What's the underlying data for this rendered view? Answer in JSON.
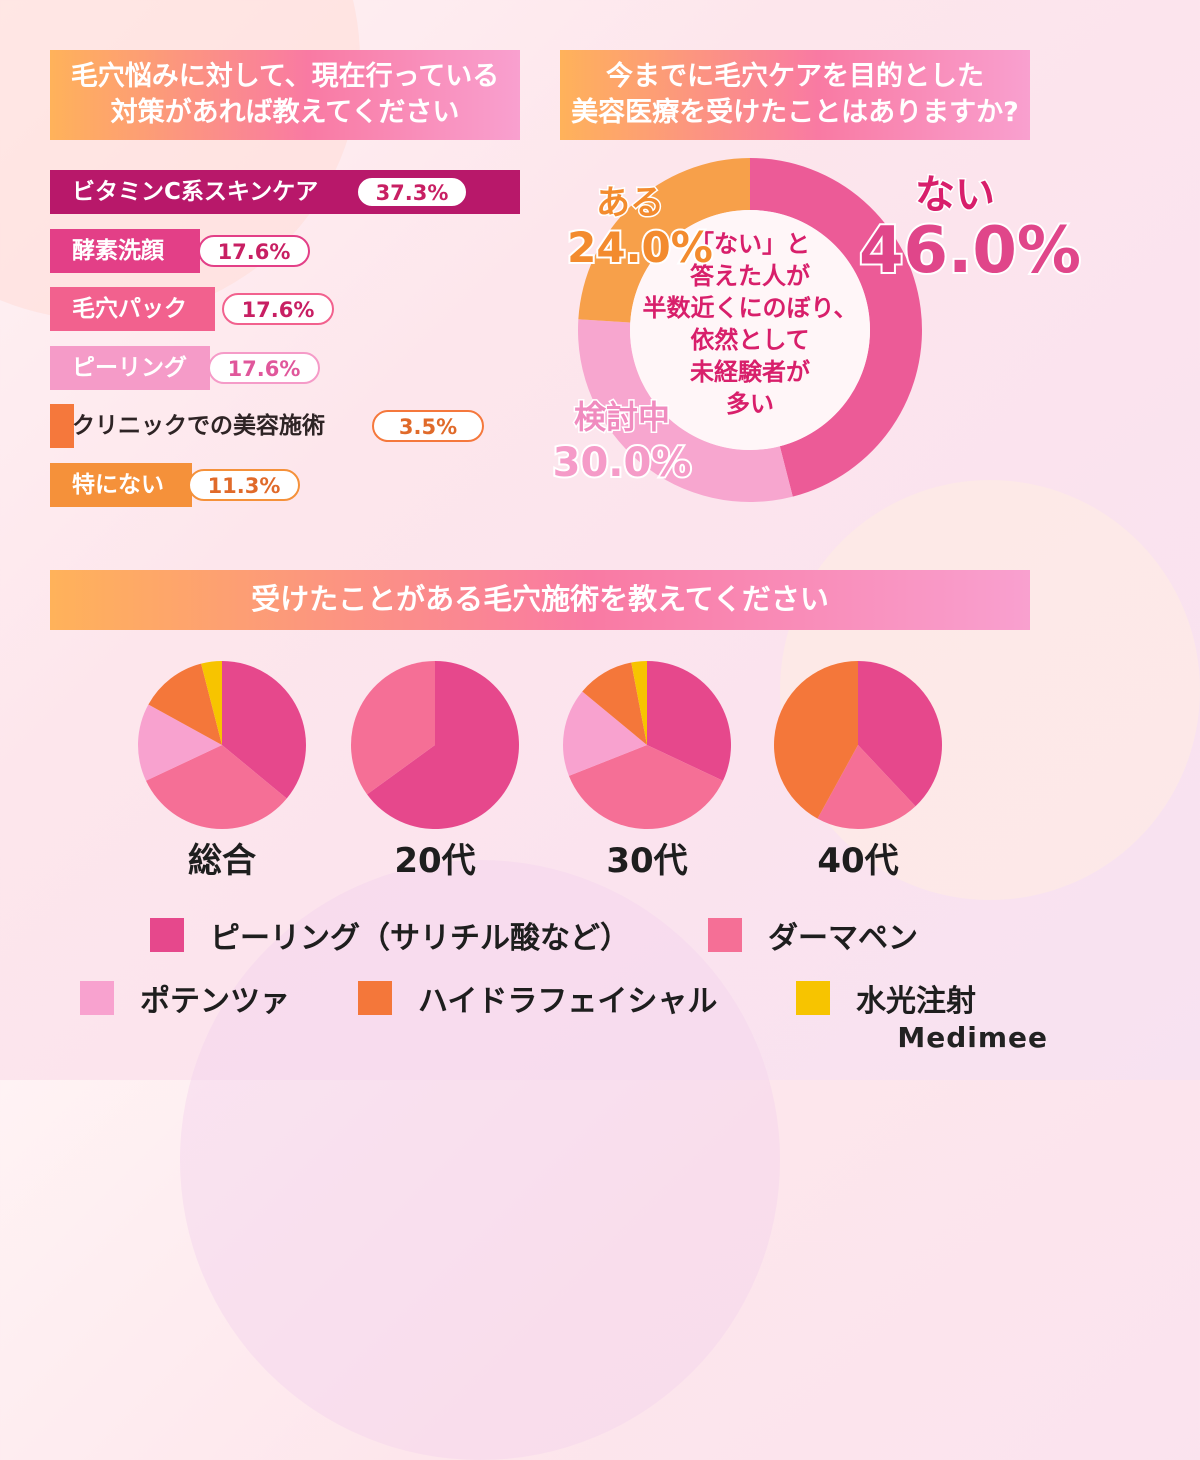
{
  "q1": {
    "title": "毛穴悩みに対して、現在行っている\n対策があれば教えてください"
  },
  "q2": {
    "title": "今までに毛穴ケアを目的とした\n美容医療を受けたことはありますか?",
    "center_text": [
      "「ない」と",
      "答えた人が",
      "半数近くにのぼり、",
      "依然として",
      "未経験者が",
      "多い"
    ]
  },
  "q3": {
    "title": "受けたことがある毛穴施術を教えてください"
  },
  "brand": "Medimee",
  "chart_data": [
    {
      "type": "bar",
      "orientation": "horizontal",
      "categories": [
        "ビタミンC系スキンケア",
        "酵素洗顔",
        "毛穴パック",
        "ピーリング",
        "クリニックでの美容施術",
        "特にない"
      ],
      "values": [
        37.3,
        17.6,
        17.6,
        17.6,
        3.5,
        11.3
      ],
      "value_labels": [
        "37.3%",
        "17.6%",
        "17.6%",
        "17.6%",
        "3.5%",
        "11.3%"
      ],
      "colors": [
        "#b8186a",
        "#e33f87",
        "#f2618e",
        "#f59bc8",
        "#f5783c",
        "#f5913a"
      ]
    },
    {
      "type": "pie",
      "style": "donut",
      "categories": [
        "ない",
        "検討中",
        "ある"
      ],
      "values": [
        46.0,
        30.0,
        24.0
      ],
      "value_labels": [
        "46.0%",
        "30.0%",
        "24.0%"
      ],
      "colors": [
        "#ec5b97",
        "#f7a6cf",
        "#f7a04a"
      ]
    },
    {
      "type": "pie",
      "legend": [
        "ピーリング（サリチル酸など）",
        "ダーマペン",
        "ポテンツァ",
        "ハイドラフェイシャル",
        "水光注射"
      ],
      "legend_colors": [
        "#e6488c",
        "#f56f96",
        "#f8a2cf",
        "#f4773a",
        "#f7c400"
      ],
      "groups": [
        {
          "label": "総合",
          "values": [
            36,
            32,
            15,
            13,
            4
          ]
        },
        {
          "label": "20代",
          "values": [
            65,
            35,
            0,
            0,
            0
          ]
        },
        {
          "label": "30代",
          "values": [
            32,
            37,
            17,
            11,
            3
          ]
        },
        {
          "label": "40代",
          "values": [
            38,
            20,
            0,
            42,
            0
          ]
        }
      ]
    }
  ]
}
